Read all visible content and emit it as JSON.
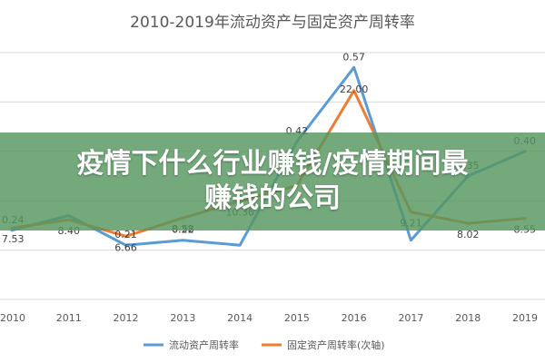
{
  "chart_data": {
    "type": "line",
    "title": "2010-2019年流动资产与固定资产周转率",
    "categories": [
      "2010",
      "2011",
      "2012",
      "2013",
      "2014",
      "2015",
      "2016",
      "2017",
      "2018",
      "2019"
    ],
    "series": [
      {
        "name": "流动资产周转率",
        "axis": "primary",
        "color": "#5b9bd5",
        "values": [
          0.24,
          0.27,
          0.21,
          0.22,
          0.21,
          0.42,
          0.57,
          0.22,
          0.35,
          0.4
        ],
        "labels": [
          "0.24",
          "",
          "0.21",
          "0.22",
          "",
          "0.42",
          "0.57",
          "",
          "0.35",
          "0.40"
        ]
      },
      {
        "name": "固定资产周转率(次轴)",
        "axis": "secondary",
        "color": "#ed7d31",
        "values": [
          7.53,
          8.4,
          6.66,
          8.58,
          10.36,
          12.0,
          22.0,
          9.21,
          8.02,
          8.55
        ],
        "labels": [
          "7.53",
          "8.40",
          "6.66",
          "8.58",
          "10.36",
          "",
          "22.00",
          "9.21",
          "8.02",
          "8.55"
        ]
      }
    ],
    "legend_position": "bottom",
    "grid": true
  },
  "overlay": {
    "line1": "疫情下什么行业赚钱/疫情期间最",
    "line2": "赚钱的公司",
    "background": "#55965f"
  }
}
